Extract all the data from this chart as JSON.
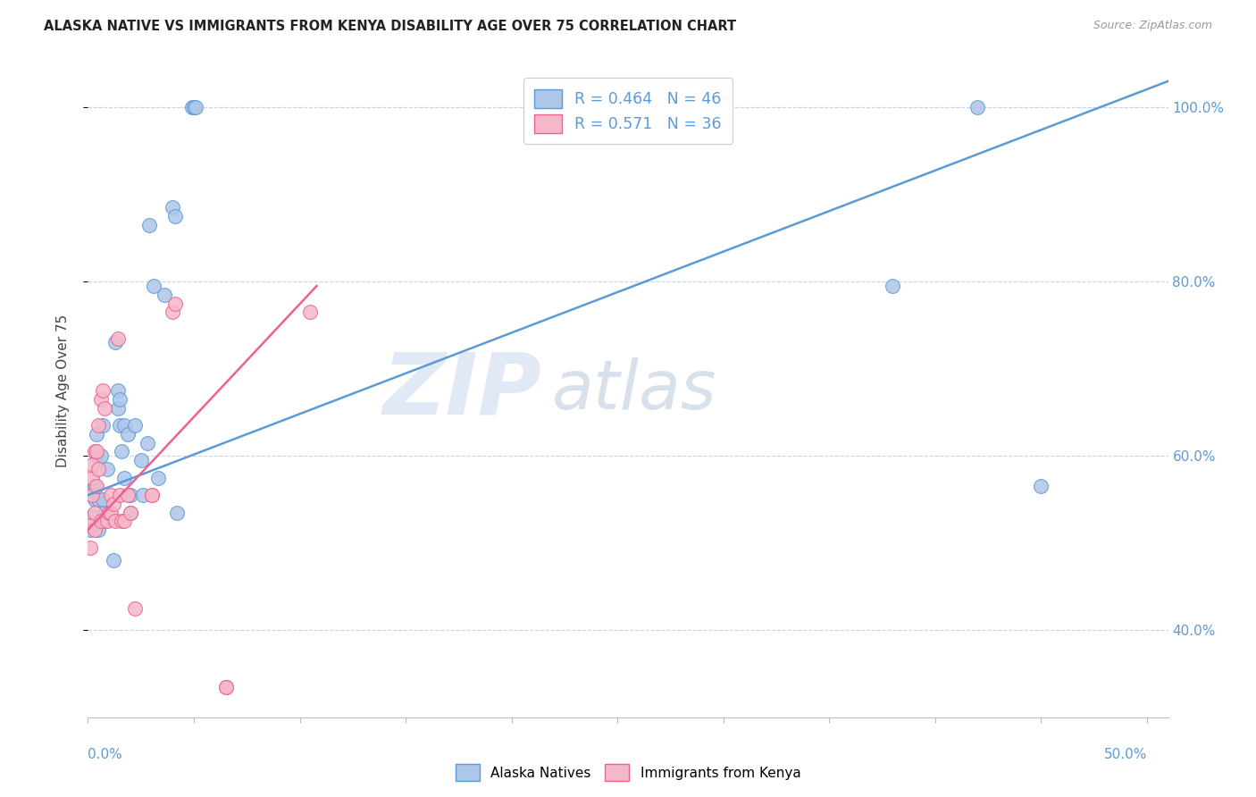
{
  "title": "ALASKA NATIVE VS IMMIGRANTS FROM KENYA DISABILITY AGE OVER 75 CORRELATION CHART",
  "source": "Source: ZipAtlas.com",
  "ylabel": "Disability Age Over 75",
  "legend_blue": "R = 0.464   N = 46",
  "legend_pink": "R = 0.571   N = 36",
  "legend_label_blue": "Alaska Natives",
  "legend_label_pink": "Immigrants from Kenya",
  "watermark_zip": "ZIP",
  "watermark_atlas": "atlas",
  "blue_color": "#aec6e8",
  "pink_color": "#f5b8c8",
  "line_blue": "#5b9bd5",
  "line_pink": "#f06090",
  "blue_scatter": [
    [
      0.001,
      0.515
    ],
    [
      0.002,
      0.53
    ],
    [
      0.002,
      0.56
    ],
    [
      0.003,
      0.52
    ],
    [
      0.003,
      0.55
    ],
    [
      0.003,
      0.565
    ],
    [
      0.004,
      0.6
    ],
    [
      0.004,
      0.625
    ],
    [
      0.005,
      0.515
    ],
    [
      0.005,
      0.55
    ],
    [
      0.006,
      0.6
    ],
    [
      0.007,
      0.55
    ],
    [
      0.007,
      0.635
    ],
    [
      0.008,
      0.525
    ],
    [
      0.008,
      0.535
    ],
    [
      0.009,
      0.585
    ],
    [
      0.01,
      0.535
    ],
    [
      0.012,
      0.48
    ],
    [
      0.013,
      0.73
    ],
    [
      0.014,
      0.655
    ],
    [
      0.014,
      0.675
    ],
    [
      0.015,
      0.635
    ],
    [
      0.015,
      0.665
    ],
    [
      0.016,
      0.605
    ],
    [
      0.017,
      0.575
    ],
    [
      0.017,
      0.635
    ],
    [
      0.019,
      0.625
    ],
    [
      0.02,
      0.555
    ],
    [
      0.02,
      0.535
    ],
    [
      0.022,
      0.635
    ],
    [
      0.025,
      0.595
    ],
    [
      0.026,
      0.555
    ],
    [
      0.028,
      0.615
    ],
    [
      0.029,
      0.865
    ],
    [
      0.031,
      0.795
    ],
    [
      0.033,
      0.575
    ],
    [
      0.036,
      0.785
    ],
    [
      0.04,
      0.885
    ],
    [
      0.041,
      0.875
    ],
    [
      0.042,
      0.535
    ],
    [
      0.049,
      1.0
    ],
    [
      0.05,
      1.0
    ],
    [
      0.051,
      1.0
    ],
    [
      0.38,
      0.795
    ],
    [
      0.42,
      1.0
    ],
    [
      0.45,
      0.565
    ]
  ],
  "pink_scatter": [
    [
      0.001,
      0.495
    ],
    [
      0.001,
      0.52
    ],
    [
      0.002,
      0.575
    ],
    [
      0.002,
      0.59
    ],
    [
      0.002,
      0.555
    ],
    [
      0.003,
      0.515
    ],
    [
      0.003,
      0.535
    ],
    [
      0.003,
      0.605
    ],
    [
      0.004,
      0.565
    ],
    [
      0.004,
      0.605
    ],
    [
      0.005,
      0.585
    ],
    [
      0.005,
      0.635
    ],
    [
      0.006,
      0.525
    ],
    [
      0.006,
      0.665
    ],
    [
      0.007,
      0.675
    ],
    [
      0.008,
      0.655
    ],
    [
      0.009,
      0.525
    ],
    [
      0.01,
      0.535
    ],
    [
      0.011,
      0.535
    ],
    [
      0.011,
      0.555
    ],
    [
      0.012,
      0.545
    ],
    [
      0.013,
      0.525
    ],
    [
      0.014,
      0.735
    ],
    [
      0.015,
      0.555
    ],
    [
      0.016,
      0.525
    ],
    [
      0.017,
      0.525
    ],
    [
      0.019,
      0.555
    ],
    [
      0.02,
      0.535
    ],
    [
      0.022,
      0.425
    ],
    [
      0.03,
      0.555
    ],
    [
      0.03,
      0.555
    ],
    [
      0.04,
      0.765
    ],
    [
      0.041,
      0.775
    ],
    [
      0.065,
      0.335
    ],
    [
      0.065,
      0.335
    ],
    [
      0.105,
      0.765
    ]
  ],
  "xlim": [
    0.0,
    0.51
  ],
  "ylim": [
    0.3,
    1.05
  ],
  "blue_line_x": [
    0.0,
    0.51
  ],
  "blue_line_y": [
    0.555,
    1.03
  ],
  "pink_line_x": [
    0.0,
    0.108
  ],
  "pink_line_y": [
    0.515,
    0.795
  ],
  "x_ticks": [
    0.0,
    0.05,
    0.1,
    0.15,
    0.2,
    0.25,
    0.3,
    0.35,
    0.4,
    0.45,
    0.5
  ],
  "y_ticks": [
    0.4,
    0.6,
    0.8,
    1.0
  ],
  "y_tick_labels": [
    "40.0%",
    "60.0%",
    "80.0%",
    "100.0%"
  ]
}
